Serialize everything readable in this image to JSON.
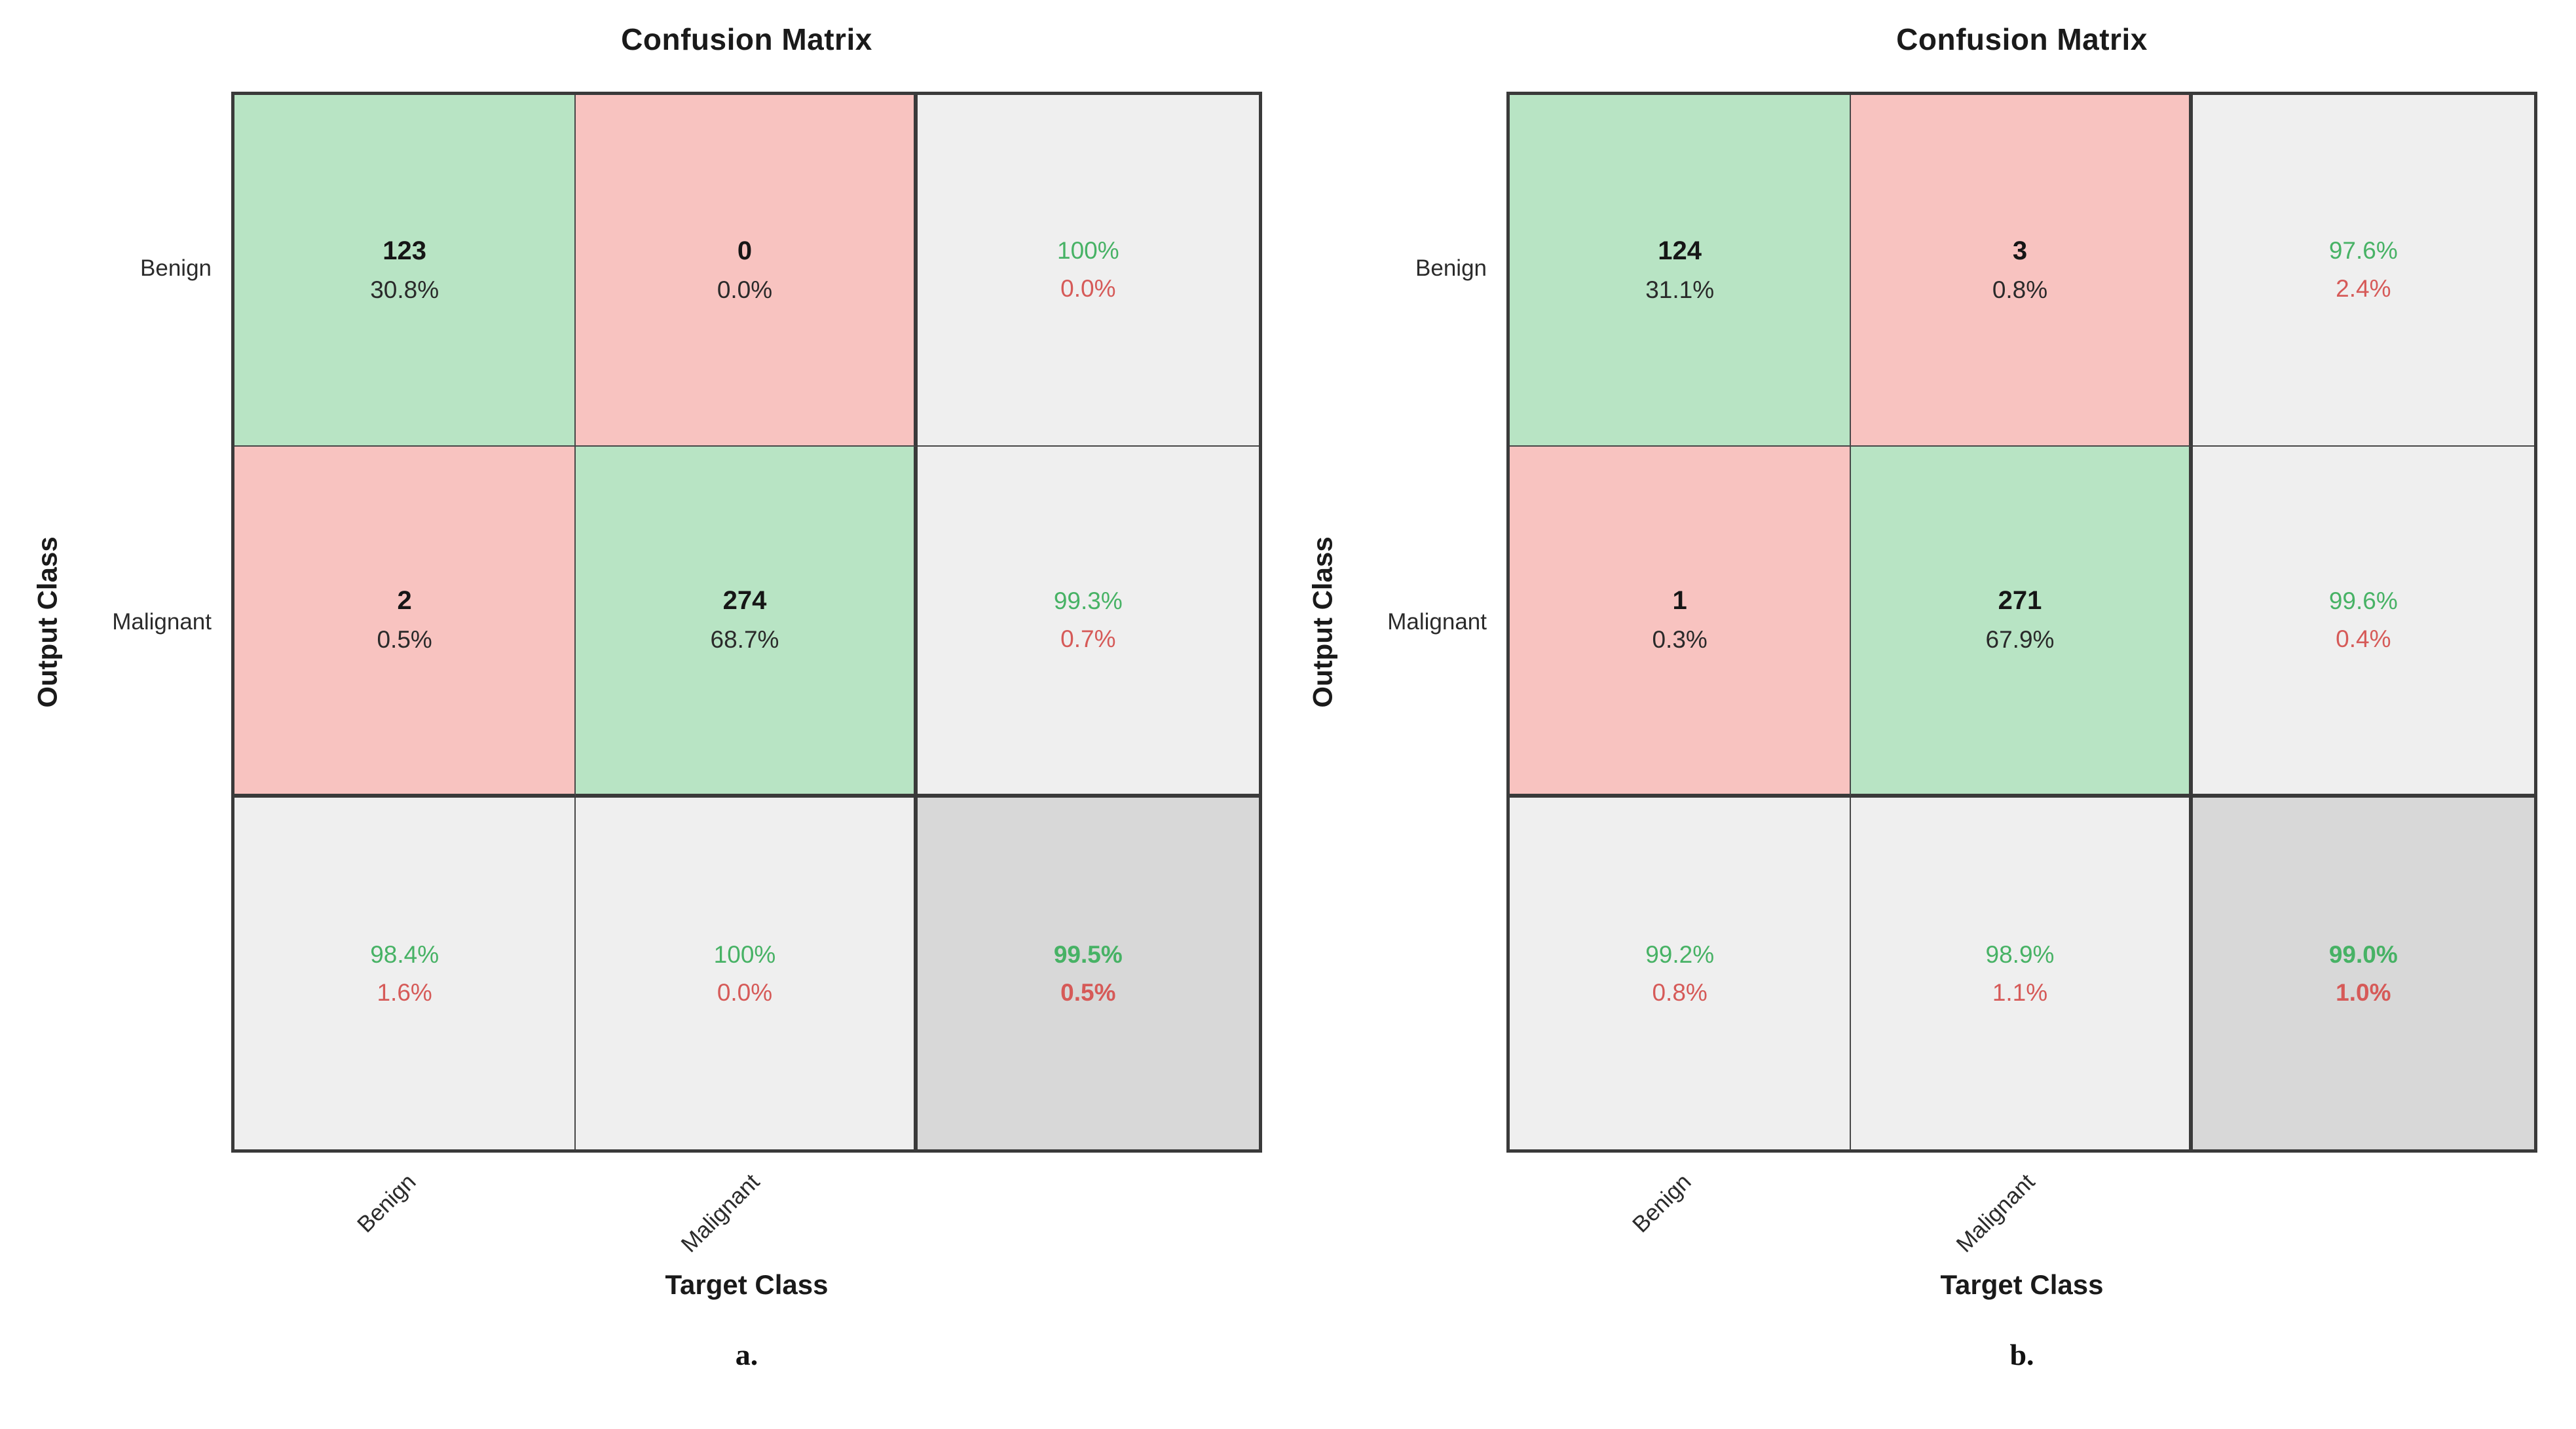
{
  "colors": {
    "cell_green": "#b8e4c4",
    "cell_red": "#f8c3c0",
    "cell_gray": "#efefef",
    "cell_dark_gray": "#d8d8d8",
    "text_green": "#47b265",
    "text_red": "#d65a58",
    "grid_line": "#3a3a3a"
  },
  "chart_data": [
    {
      "type": "heatmap",
      "title": "Confusion Matrix",
      "xlabel": "Target Class",
      "ylabel": "Output Class",
      "caption": "a.",
      "classes": [
        "Benign",
        "Malignant"
      ],
      "matrix_counts": [
        [
          123,
          0
        ],
        [
          2,
          274
        ]
      ],
      "matrix_pct": [
        [
          "30.8%",
          "0.0%"
        ],
        [
          "0.5%",
          "68.7%"
        ]
      ],
      "row_summary": [
        [
          "100%",
          "0.0%"
        ],
        [
          "99.3%",
          "0.7%"
        ]
      ],
      "col_summary": [
        [
          "98.4%",
          "1.6%"
        ],
        [
          "100%",
          "0.0%"
        ]
      ],
      "overall": [
        "99.5%",
        "0.5%"
      ]
    },
    {
      "type": "heatmap",
      "title": "Confusion Matrix",
      "xlabel": "Target Class",
      "ylabel": "Output Class",
      "caption": "b.",
      "classes": [
        "Benign",
        "Malignant"
      ],
      "matrix_counts": [
        [
          124,
          3
        ],
        [
          1,
          271
        ]
      ],
      "matrix_pct": [
        [
          "31.1%",
          "0.8%"
        ],
        [
          "0.3%",
          "67.9%"
        ]
      ],
      "row_summary": [
        [
          "97.6%",
          "2.4%"
        ],
        [
          "99.6%",
          "0.4%"
        ]
      ],
      "col_summary": [
        [
          "99.2%",
          "0.8%"
        ],
        [
          "98.9%",
          "1.1%"
        ]
      ],
      "overall": [
        "99.0%",
        "1.0%"
      ]
    }
  ]
}
